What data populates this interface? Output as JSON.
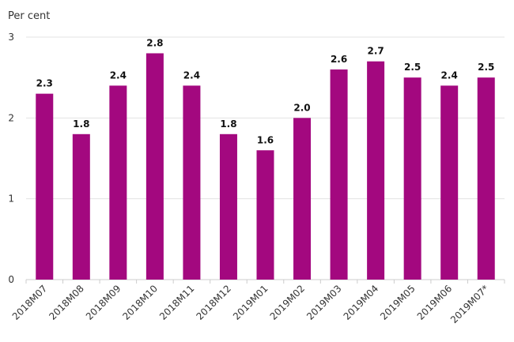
{
  "chart_data": {
    "type": "bar",
    "ylabel": "Per cent",
    "categories": [
      "2018M07",
      "2018M08",
      "2018M09",
      "2018M10",
      "2018M11",
      "2018M12",
      "2019M01",
      "2019M02",
      "2019M03",
      "2019M04",
      "2019M05",
      "2019M06",
      "2019M07*"
    ],
    "values": [
      2.3,
      1.8,
      2.4,
      2.8,
      2.4,
      1.8,
      1.6,
      2.0,
      2.6,
      2.7,
      2.5,
      2.4,
      2.5
    ],
    "data_labels": [
      "2.3",
      "1.8",
      "2.4",
      "2.8",
      "2.4",
      "1.8",
      "1.6",
      "2.0",
      "2.6",
      "2.7",
      "2.5",
      "2.4",
      "2.5"
    ],
    "yticks": [
      "0",
      "1",
      "2",
      "3"
    ],
    "ylim": [
      0,
      3
    ],
    "grid": true,
    "bar_color": "#a3087f"
  }
}
